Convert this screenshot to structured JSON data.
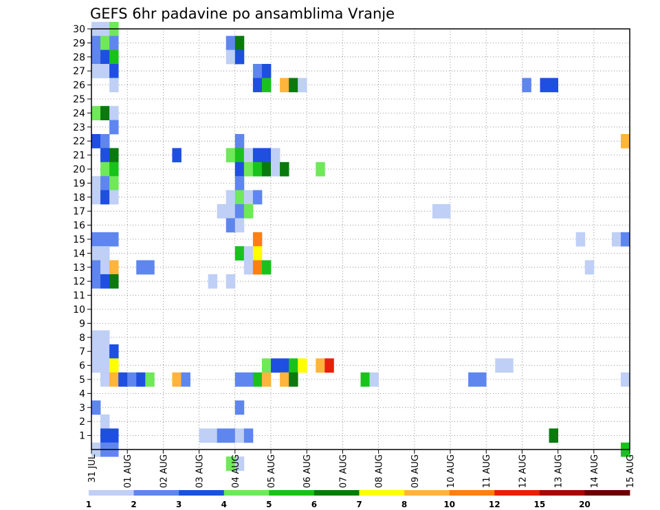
{
  "chart_data": {
    "type": "heatmap",
    "title": "GEFS 6hr padavine po ansamblima Vranje",
    "y_tick_labels": [
      "1",
      "2",
      "3",
      "4",
      "5",
      "6",
      "7",
      "8",
      "9",
      "10",
      "11",
      "12",
      "13",
      "14",
      "15",
      "16",
      "17",
      "18",
      "19",
      "20",
      "21",
      "22",
      "23",
      "24",
      "25",
      "26",
      "27",
      "28",
      "29",
      "30"
    ],
    "x_tick_labels": [
      "31 JUL",
      "01 AUG",
      "02 AUG",
      "03 AUG",
      "04 AUG",
      "05 AUG",
      "06 AUG",
      "07 AUG",
      "08 AUG",
      "09 AUG",
      "10 AUG",
      "11 AUG",
      "12 AUG",
      "13 AUG",
      "14 AUG",
      "15 AUG"
    ],
    "ylim": [
      0,
      30
    ],
    "xlim": [
      0,
      60
    ],
    "grid": true,
    "colorbar": {
      "labels": [
        "1",
        "2",
        "3",
        "4",
        "5",
        "6",
        "7",
        "8",
        "10",
        "12",
        "15",
        "20"
      ],
      "colors": [
        "#bfcff5",
        "#5f86ee",
        "#1e4fe0",
        "#6fe85a",
        "#19c21b",
        "#0a7a0f",
        "#ffff00",
        "#ffb43c",
        "#ff7f10",
        "#e81f0a",
        "#a90606",
        "#6a0000"
      ]
    },
    "cells": [
      {
        "m": 30,
        "t": 0,
        "v": 1
      },
      {
        "m": 30,
        "t": 1,
        "v": 1
      },
      {
        "m": 30,
        "t": 2,
        "v": 4
      },
      {
        "m": 29,
        "t": 0,
        "v": 2
      },
      {
        "m": 29,
        "t": 1,
        "v": 4
      },
      {
        "m": 29,
        "t": 2,
        "v": 2
      },
      {
        "m": 29,
        "t": 15,
        "v": 2
      },
      {
        "m": 29,
        "t": 16,
        "v": 6
      },
      {
        "m": 28,
        "t": 0,
        "v": 2
      },
      {
        "m": 28,
        "t": 1,
        "v": 3
      },
      {
        "m": 28,
        "t": 2,
        "v": 5
      },
      {
        "m": 28,
        "t": 15,
        "v": 1
      },
      {
        "m": 28,
        "t": 16,
        "v": 3
      },
      {
        "m": 27,
        "t": 0,
        "v": 1
      },
      {
        "m": 27,
        "t": 1,
        "v": 1
      },
      {
        "m": 27,
        "t": 2,
        "v": 3
      },
      {
        "m": 27,
        "t": 18,
        "v": 2
      },
      {
        "m": 27,
        "t": 19,
        "v": 3
      },
      {
        "m": 26,
        "t": 2,
        "v": 1
      },
      {
        "m": 26,
        "t": 18,
        "v": 3
      },
      {
        "m": 26,
        "t": 19,
        "v": 5
      },
      {
        "m": 26,
        "t": 21,
        "v": 8
      },
      {
        "m": 26,
        "t": 22,
        "v": 6
      },
      {
        "m": 26,
        "t": 23,
        "v": 1
      },
      {
        "m": 26,
        "t": 48,
        "v": 2
      },
      {
        "m": 26,
        "t": 50,
        "v": 3
      },
      {
        "m": 26,
        "t": 51,
        "v": 3
      },
      {
        "m": 24,
        "t": 0,
        "v": 4
      },
      {
        "m": 24,
        "t": 1,
        "v": 6
      },
      {
        "m": 24,
        "t": 2,
        "v": 1
      },
      {
        "m": 23,
        "t": 2,
        "v": 2
      },
      {
        "m": 22,
        "t": 0,
        "v": 3
      },
      {
        "m": 22,
        "t": 1,
        "v": 2
      },
      {
        "m": 22,
        "t": 16,
        "v": 2
      },
      {
        "m": 22,
        "t": 59,
        "v": 8
      },
      {
        "m": 21,
        "t": 1,
        "v": 3
      },
      {
        "m": 21,
        "t": 2,
        "v": 6
      },
      {
        "m": 21,
        "t": 9,
        "v": 3
      },
      {
        "m": 21,
        "t": 15,
        "v": 4
      },
      {
        "m": 21,
        "t": 16,
        "v": 5
      },
      {
        "m": 21,
        "t": 17,
        "v": 1
      },
      {
        "m": 21,
        "t": 18,
        "v": 3
      },
      {
        "m": 21,
        "t": 19,
        "v": 3
      },
      {
        "m": 21,
        "t": 20,
        "v": 1
      },
      {
        "m": 20,
        "t": 1,
        "v": 4
      },
      {
        "m": 20,
        "t": 2,
        "v": 5
      },
      {
        "m": 20,
        "t": 16,
        "v": 3
      },
      {
        "m": 20,
        "t": 17,
        "v": 4
      },
      {
        "m": 20,
        "t": 18,
        "v": 5
      },
      {
        "m": 20,
        "t": 19,
        "v": 6
      },
      {
        "m": 20,
        "t": 20,
        "v": 1
      },
      {
        "m": 20,
        "t": 21,
        "v": 6
      },
      {
        "m": 20,
        "t": 25,
        "v": 4
      },
      {
        "m": 19,
        "t": 0,
        "v": 1
      },
      {
        "m": 19,
        "t": 1,
        "v": 2
      },
      {
        "m": 19,
        "t": 2,
        "v": 4
      },
      {
        "m": 19,
        "t": 16,
        "v": 2
      },
      {
        "m": 18,
        "t": 0,
        "v": 1
      },
      {
        "m": 18,
        "t": 1,
        "v": 3
      },
      {
        "m": 18,
        "t": 2,
        "v": 1
      },
      {
        "m": 18,
        "t": 15,
        "v": 1
      },
      {
        "m": 18,
        "t": 16,
        "v": 4
      },
      {
        "m": 18,
        "t": 17,
        "v": 1
      },
      {
        "m": 18,
        "t": 18,
        "v": 2
      },
      {
        "m": 17,
        "t": 14,
        "v": 1
      },
      {
        "m": 17,
        "t": 15,
        "v": 1
      },
      {
        "m": 17,
        "t": 16,
        "v": 2
      },
      {
        "m": 17,
        "t": 17,
        "v": 4
      },
      {
        "m": 17,
        "t": 38,
        "v": 1
      },
      {
        "m": 17,
        "t": 39,
        "v": 1
      },
      {
        "m": 16,
        "t": 15,
        "v": 2
      },
      {
        "m": 16,
        "t": 16,
        "v": 1
      },
      {
        "m": 15,
        "t": 0,
        "v": 2
      },
      {
        "m": 15,
        "t": 1,
        "v": 2
      },
      {
        "m": 15,
        "t": 2,
        "v": 2
      },
      {
        "m": 15,
        "t": 18,
        "v": 10
      },
      {
        "m": 15,
        "t": 54,
        "v": 1
      },
      {
        "m": 15,
        "t": 58,
        "v": 1
      },
      {
        "m": 15,
        "t": 59,
        "v": 2
      },
      {
        "m": 14,
        "t": 0,
        "v": 1
      },
      {
        "m": 14,
        "t": 1,
        "v": 1
      },
      {
        "m": 14,
        "t": 16,
        "v": 5
      },
      {
        "m": 14,
        "t": 17,
        "v": 1
      },
      {
        "m": 14,
        "t": 18,
        "v": 7
      },
      {
        "m": 13,
        "t": 0,
        "v": 2
      },
      {
        "m": 13,
        "t": 1,
        "v": 1
      },
      {
        "m": 13,
        "t": 2,
        "v": 8
      },
      {
        "m": 13,
        "t": 5,
        "v": 2
      },
      {
        "m": 13,
        "t": 6,
        "v": 2
      },
      {
        "m": 13,
        "t": 17,
        "v": 1
      },
      {
        "m": 13,
        "t": 18,
        "v": 10
      },
      {
        "m": 13,
        "t": 19,
        "v": 5
      },
      {
        "m": 13,
        "t": 55,
        "v": 1
      },
      {
        "m": 12,
        "t": 0,
        "v": 2
      },
      {
        "m": 12,
        "t": 1,
        "v": 3
      },
      {
        "m": 12,
        "t": 2,
        "v": 6
      },
      {
        "m": 12,
        "t": 13,
        "v": 1
      },
      {
        "m": 12,
        "t": 15,
        "v": 1
      },
      {
        "m": 8,
        "t": 0,
        "v": 1
      },
      {
        "m": 8,
        "t": 1,
        "v": 1
      },
      {
        "m": 7,
        "t": 0,
        "v": 1
      },
      {
        "m": 7,
        "t": 1,
        "v": 1
      },
      {
        "m": 7,
        "t": 2,
        "v": 3
      },
      {
        "m": 6,
        "t": 0,
        "v": 1
      },
      {
        "m": 6,
        "t": 1,
        "v": 1
      },
      {
        "m": 6,
        "t": 2,
        "v": 7
      },
      {
        "m": 6,
        "t": 19,
        "v": 4
      },
      {
        "m": 6,
        "t": 20,
        "v": 3
      },
      {
        "m": 6,
        "t": 21,
        "v": 3
      },
      {
        "m": 6,
        "t": 22,
        "v": 5
      },
      {
        "m": 6,
        "t": 23,
        "v": 7
      },
      {
        "m": 6,
        "t": 25,
        "v": 8
      },
      {
        "m": 6,
        "t": 26,
        "v": 12
      },
      {
        "m": 6,
        "t": 45,
        "v": 1
      },
      {
        "m": 6,
        "t": 46,
        "v": 1
      },
      {
        "m": 5,
        "t": 1,
        "v": 1
      },
      {
        "m": 5,
        "t": 2,
        "v": 8
      },
      {
        "m": 5,
        "t": 3,
        "v": 3
      },
      {
        "m": 5,
        "t": 4,
        "v": 2
      },
      {
        "m": 5,
        "t": 5,
        "v": 3
      },
      {
        "m": 5,
        "t": 6,
        "v": 4
      },
      {
        "m": 5,
        "t": 9,
        "v": 8
      },
      {
        "m": 5,
        "t": 10,
        "v": 2
      },
      {
        "m": 5,
        "t": 16,
        "v": 2
      },
      {
        "m": 5,
        "t": 17,
        "v": 2
      },
      {
        "m": 5,
        "t": 18,
        "v": 5
      },
      {
        "m": 5,
        "t": 19,
        "v": 8
      },
      {
        "m": 5,
        "t": 21,
        "v": 8
      },
      {
        "m": 5,
        "t": 22,
        "v": 6
      },
      {
        "m": 5,
        "t": 30,
        "v": 5
      },
      {
        "m": 5,
        "t": 31,
        "v": 1
      },
      {
        "m": 5,
        "t": 42,
        "v": 2
      },
      {
        "m": 5,
        "t": 43,
        "v": 2
      },
      {
        "m": 5,
        "t": 59,
        "v": 1
      },
      {
        "m": 3,
        "t": 0,
        "v": 2
      },
      {
        "m": 3,
        "t": 16,
        "v": 2
      },
      {
        "m": 2,
        "t": 1,
        "v": 1
      },
      {
        "m": 1,
        "t": 1,
        "v": 3
      },
      {
        "m": 1,
        "t": 2,
        "v": 3
      },
      {
        "m": 1,
        "t": 12,
        "v": 1
      },
      {
        "m": 1,
        "t": 13,
        "v": 1
      },
      {
        "m": 1,
        "t": 14,
        "v": 2
      },
      {
        "m": 1,
        "t": 15,
        "v": 2
      },
      {
        "m": 1,
        "t": 16,
        "v": 1
      },
      {
        "m": 1,
        "t": 17,
        "v": 2
      },
      {
        "m": 1,
        "t": 51,
        "v": 6
      },
      {
        "m": 0,
        "t": 0,
        "v": 1
      },
      {
        "m": 0,
        "t": 1,
        "v": 2
      },
      {
        "m": 0,
        "t": 2,
        "v": 2
      },
      {
        "m": 0,
        "t": 59,
        "v": 5
      },
      {
        "m": -1,
        "t": 15,
        "v": 4
      },
      {
        "m": -1,
        "t": 16,
        "v": 1
      }
    ]
  }
}
